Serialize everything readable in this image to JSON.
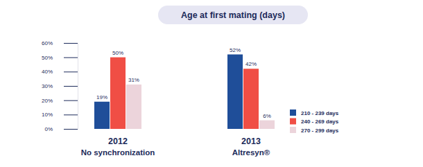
{
  "chart_data": {
    "type": "bar",
    "title": "Age at first mating (days)",
    "categories": [
      "2012\nNo synchronization",
      "2013\nAltresyn®"
    ],
    "ylim": [
      0,
      60
    ],
    "yticks": [
      {
        "value": 0,
        "label": "0%"
      },
      {
        "value": 10,
        "label": "10%"
      },
      {
        "value": 20,
        "label": "20%"
      },
      {
        "value": 30,
        "label": "30%"
      },
      {
        "value": 40,
        "label": "40%"
      },
      {
        "value": 50,
        "label": "50%"
      },
      {
        "value": 60,
        "label": "60%"
      }
    ],
    "data_labels": true,
    "legend": "right",
    "series": [
      {
        "name": "210 - 239 days",
        "color": "#1f4e99",
        "values": [
          19,
          52
        ],
        "value_labels": [
          "19%",
          "52%"
        ]
      },
      {
        "name": "240 - 269 days",
        "color": "#f04e45",
        "values": [
          50,
          42
        ],
        "value_labels": [
          "50%",
          "42%"
        ]
      },
      {
        "name": "270 - 299 days",
        "color": "#ecd4db",
        "values": [
          31,
          6
        ],
        "value_labels": [
          "31%",
          "6%"
        ]
      }
    ]
  }
}
